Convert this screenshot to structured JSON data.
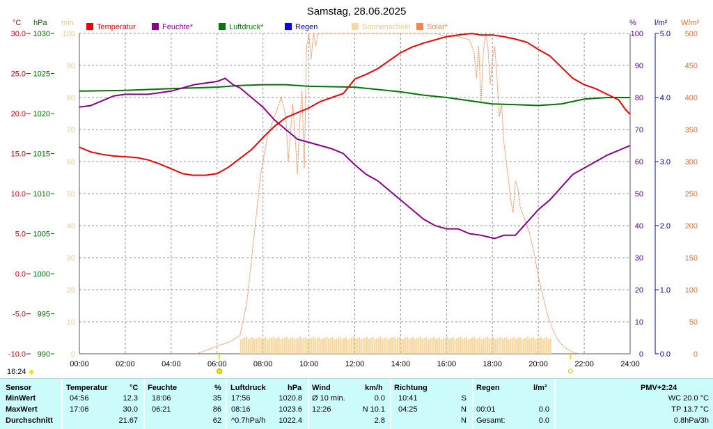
{
  "title": "Samstag, 28.06.2025",
  "current_time": "16:24",
  "axes": {
    "temp_unit": "°C",
    "press_unit": "hPa",
    "sun_unit": "min",
    "hum_unit": "%",
    "rain_unit": "l/m²",
    "solar_unit": "W/m²",
    "temp_ticks": [
      "30.0",
      "25.0",
      "20.0",
      "15.0",
      "10.0",
      "5.0",
      "0.0",
      "-5.0",
      "-10.0"
    ],
    "press_ticks": [
      "1030",
      "1025",
      "1020",
      "1015",
      "1010",
      "1005",
      "1000",
      "995",
      "990"
    ],
    "sun_ticks": [
      "100",
      "90",
      "80",
      "70",
      "60",
      "50",
      "40",
      "30",
      "20",
      "10",
      "0"
    ],
    "hum_ticks": [
      "100",
      "90",
      "80",
      "70",
      "60",
      "50",
      "40",
      "30",
      "20",
      "10",
      "0"
    ],
    "rain_ticks": [
      "5.0",
      "4.0",
      "3.0",
      "2.0",
      "1.0",
      "0.0"
    ],
    "solar_ticks": [
      "500",
      "450",
      "400",
      "350",
      "300",
      "250",
      "200",
      "150",
      "100",
      "50",
      "0"
    ],
    "x_ticks": [
      "00:00",
      "02:00",
      "04:00",
      "06:00",
      "08:00",
      "10:00",
      "12:00",
      "14:00",
      "16:00",
      "18:00",
      "20:00",
      "22:00",
      "24:00"
    ]
  },
  "colors": {
    "temp": "#ee0000",
    "hum": "#880088",
    "press": "#007700",
    "rain": "#0000ee",
    "sun": "#f8d8a0",
    "solar": "#f08850",
    "tempAxis": "#cc0000",
    "pressAxis": "#006600",
    "humAxis": "#550088",
    "rainAxis": "#0000aa",
    "sunAxis": "#e8c890",
    "solarAxis": "#e07030",
    "grid": "#909090"
  },
  "legend": [
    {
      "label": "Temperatur",
      "color": "#ee0000"
    },
    {
      "label": "Feuchte*",
      "color": "#880088"
    },
    {
      "label": "Luftdruck*",
      "color": "#007700"
    },
    {
      "label": "Regen",
      "color": "#0000ee"
    },
    {
      "label": "Sonnenschein",
      "color": "#f8d8a0"
    },
    {
      "label": "Solar*",
      "color": "#f08850"
    }
  ],
  "chart_data": {
    "type": "line",
    "title": "Samstag, 28.06.2025",
    "x_unit": "hours",
    "xlim": [
      0,
      24
    ],
    "ylim_temperature": [
      -10,
      30
    ],
    "ylim_pressure": [
      990,
      1030
    ],
    "ylim_humidity": [
      0,
      100
    ],
    "ylim_rain": [
      0,
      5
    ],
    "ylim_solar": [
      0,
      500
    ],
    "ylim_sunshine": [
      0,
      100
    ],
    "grid": true,
    "legend_position": "top",
    "series": [
      {
        "name": "Temperatur",
        "unit": "°C",
        "points": [
          [
            0,
            15.8
          ],
          [
            0.5,
            15.2
          ],
          [
            1,
            14.9
          ],
          [
            1.5,
            14.7
          ],
          [
            2,
            14.6
          ],
          [
            2.5,
            14.5
          ],
          [
            3,
            14.2
          ],
          [
            3.5,
            13.7
          ],
          [
            4,
            13.1
          ],
          [
            4.5,
            12.5
          ],
          [
            4.93,
            12.3
          ],
          [
            5.5,
            12.3
          ],
          [
            6,
            12.5
          ],
          [
            6.5,
            13.3
          ],
          [
            7,
            14.4
          ],
          [
            7.5,
            15.5
          ],
          [
            8,
            17.0
          ],
          [
            8.5,
            18.4
          ],
          [
            9,
            19.5
          ],
          [
            9.5,
            20.1
          ],
          [
            10,
            20.7
          ],
          [
            10.5,
            21.5
          ],
          [
            11,
            22.0
          ],
          [
            11.5,
            22.5
          ],
          [
            12,
            24.3
          ],
          [
            12.5,
            24.9
          ],
          [
            13,
            25.6
          ],
          [
            13.5,
            26.6
          ],
          [
            14,
            27.6
          ],
          [
            14.5,
            28.3
          ],
          [
            15,
            28.8
          ],
          [
            15.5,
            29.2
          ],
          [
            16,
            29.6
          ],
          [
            16.5,
            29.8
          ],
          [
            17.1,
            30.0
          ],
          [
            17.5,
            29.8
          ],
          [
            18,
            29.8
          ],
          [
            18.5,
            29.6
          ],
          [
            19,
            29.3
          ],
          [
            19.5,
            28.9
          ],
          [
            20,
            28.0
          ],
          [
            20.5,
            27.2
          ],
          [
            21,
            25.8
          ],
          [
            21.5,
            24.4
          ],
          [
            22,
            23.6
          ],
          [
            22.5,
            23.1
          ],
          [
            23,
            22.4
          ],
          [
            23.5,
            21.7
          ],
          [
            23.8,
            20.5
          ],
          [
            24,
            19.9
          ]
        ]
      },
      {
        "name": "Feuchte*",
        "unit": "%",
        "points": [
          [
            0,
            77
          ],
          [
            0.5,
            77.5
          ],
          [
            1,
            79
          ],
          [
            1.5,
            80.5
          ],
          [
            2,
            81
          ],
          [
            2.5,
            81
          ],
          [
            3,
            81
          ],
          [
            3.5,
            81.5
          ],
          [
            4,
            82
          ],
          [
            4.5,
            83
          ],
          [
            5,
            84
          ],
          [
            5.5,
            84.5
          ],
          [
            6,
            85
          ],
          [
            6.35,
            86
          ],
          [
            6.7,
            84
          ],
          [
            7,
            83
          ],
          [
            7.5,
            80
          ],
          [
            8,
            77
          ],
          [
            8.5,
            73
          ],
          [
            9,
            70
          ],
          [
            9.5,
            67
          ],
          [
            10,
            66
          ],
          [
            10.5,
            65
          ],
          [
            11,
            64
          ],
          [
            11.5,
            62.5
          ],
          [
            12,
            59
          ],
          [
            12.5,
            56
          ],
          [
            13,
            54
          ],
          [
            13.5,
            51
          ],
          [
            14,
            48
          ],
          [
            14.5,
            45
          ],
          [
            15,
            42
          ],
          [
            15.5,
            40
          ],
          [
            16,
            39
          ],
          [
            16.5,
            39
          ],
          [
            17,
            37.5
          ],
          [
            17.5,
            37
          ],
          [
            18.1,
            36
          ],
          [
            18.5,
            37
          ],
          [
            19,
            37
          ],
          [
            19.5,
            41
          ],
          [
            20,
            45
          ],
          [
            20.5,
            48
          ],
          [
            21,
            52
          ],
          [
            21.5,
            56
          ],
          [
            22,
            58
          ],
          [
            22.5,
            60
          ],
          [
            23,
            62
          ],
          [
            23.5,
            63.5
          ],
          [
            24,
            65
          ]
        ]
      },
      {
        "name": "Luftdruck*",
        "unit": "hPa",
        "points": [
          [
            0,
            1022.8
          ],
          [
            2,
            1022.9
          ],
          [
            4,
            1023.1
          ],
          [
            6,
            1023.3
          ],
          [
            7,
            1023.5
          ],
          [
            8,
            1023.6
          ],
          [
            9,
            1023.6
          ],
          [
            10,
            1023.4
          ],
          [
            12,
            1023.3
          ],
          [
            13,
            1023.0
          ],
          [
            14,
            1022.7
          ],
          [
            15,
            1022.3
          ],
          [
            16,
            1022.0
          ],
          [
            17,
            1021.6
          ],
          [
            18,
            1021.2
          ],
          [
            19,
            1021.1
          ],
          [
            20,
            1021.0
          ],
          [
            21,
            1021.2
          ],
          [
            22,
            1021.8
          ],
          [
            23,
            1022.0
          ],
          [
            24,
            1022.0
          ]
        ]
      },
      {
        "name": "Solar*",
        "unit": "W/m²",
        "points": [
          [
            5.1,
            0
          ],
          [
            5.5,
            5
          ],
          [
            6,
            12
          ],
          [
            6.5,
            18
          ],
          [
            7,
            28
          ],
          [
            7.3,
            80
          ],
          [
            7.6,
            180
          ],
          [
            7.9,
            280
          ],
          [
            8.2,
            340
          ],
          [
            8.5,
            370
          ],
          [
            8.8,
            400
          ],
          [
            9,
            370
          ],
          [
            9.1,
            300
          ],
          [
            9.3,
            390
          ],
          [
            9.4,
            340
          ],
          [
            9.5,
            280
          ],
          [
            9.6,
            360
          ],
          [
            9.7,
            410
          ],
          [
            9.8,
            290
          ],
          [
            9.9,
            480
          ],
          [
            10,
            500
          ],
          [
            10.1,
            460
          ],
          [
            10.2,
            500
          ],
          [
            10.3,
            480
          ],
          [
            10.4,
            500
          ],
          [
            10.5,
            500
          ],
          [
            11,
            500
          ],
          [
            12,
            500
          ],
          [
            13,
            500
          ],
          [
            14,
            500
          ],
          [
            15,
            500
          ],
          [
            15.5,
            500
          ],
          [
            16,
            495
          ],
          [
            16.5,
            495
          ],
          [
            17,
            490
          ],
          [
            17.2,
            470
          ],
          [
            17.3,
            430
          ],
          [
            17.4,
            480
          ],
          [
            17.5,
            390
          ],
          [
            17.6,
            470
          ],
          [
            17.7,
            500
          ],
          [
            17.8,
            480
          ],
          [
            17.9,
            420
          ],
          [
            18,
            460
          ],
          [
            18.1,
            480
          ],
          [
            18.2,
            430
          ],
          [
            18.3,
            370
          ],
          [
            18.4,
            390
          ],
          [
            18.5,
            330
          ],
          [
            18.6,
            300
          ],
          [
            18.7,
            270
          ],
          [
            18.8,
            240
          ],
          [
            18.9,
            220
          ],
          [
            19,
            270
          ],
          [
            19.1,
            260
          ],
          [
            19.2,
            230
          ],
          [
            19.4,
            210
          ],
          [
            19.6,
            190
          ],
          [
            19.8,
            160
          ],
          [
            20,
            120
          ],
          [
            20.2,
            90
          ],
          [
            20.4,
            60
          ],
          [
            20.6,
            40
          ],
          [
            20.8,
            25
          ],
          [
            21,
            15
          ],
          [
            21.3,
            6
          ],
          [
            21.6,
            1
          ],
          [
            21.9,
            0
          ]
        ]
      },
      {
        "name": "Sonnenschein",
        "unit": "min",
        "points": [
          [
            7,
            5
          ],
          [
            8,
            5
          ],
          [
            9,
            5
          ],
          [
            10,
            5
          ],
          [
            11,
            5
          ],
          [
            12,
            5
          ],
          [
            13,
            5
          ],
          [
            14,
            5
          ],
          [
            15,
            5
          ],
          [
            16,
            5
          ],
          [
            17,
            5
          ],
          [
            18,
            5
          ],
          [
            19,
            5
          ],
          [
            20,
            5
          ],
          [
            20.5,
            5
          ]
        ]
      }
    ]
  },
  "footer": {
    "headers": [
      "Sensor",
      "Temperatur",
      "°C",
      "Feuchte",
      "%",
      "Luftdruck",
      "hPa",
      "Wind",
      "km/h",
      "Richtung",
      "Regen",
      "l/m²",
      "PMV+2:24"
    ],
    "rows": [
      {
        "label": "MinWert",
        "t_time": "04:56",
        "t_val": "12.3",
        "h_time": "18:06",
        "h_val": "35",
        "p_time": "17:56",
        "p_val": "1020.8",
        "w_label": "Ø 10 min.",
        "w_val": "0.0",
        "r_time": "10:41",
        "r_dir": "S",
        "rg_time": "",
        "rg_val": "",
        "pmv": "WC 20.0 °C"
      },
      {
        "label": "MaxWert",
        "t_time": "17:06",
        "t_val": "30.0",
        "h_time": "06:21",
        "h_val": "86",
        "p_time": "08:16",
        "p_val": "1023.6",
        "w_label": "12:26",
        "w_val": "N 10.1",
        "r_time": "04:25",
        "r_dir": "N",
        "rg_time": "00:01",
        "rg_val": "0.0",
        "pmv": "TP 13.7 °C"
      },
      {
        "label": "Durchschnitt",
        "t_time": "",
        "t_val": "21.67",
        "h_time": "",
        "h_val": "62",
        "p_time": "^0.7hPa/h",
        "p_val": "1022.4",
        "w_label": "",
        "w_val": "2.8",
        "r_time": "",
        "r_dir": "N",
        "rg_time": "Gesamt:",
        "rg_val": "0.0",
        "pmv": "0.8hPa/3h"
      }
    ]
  }
}
